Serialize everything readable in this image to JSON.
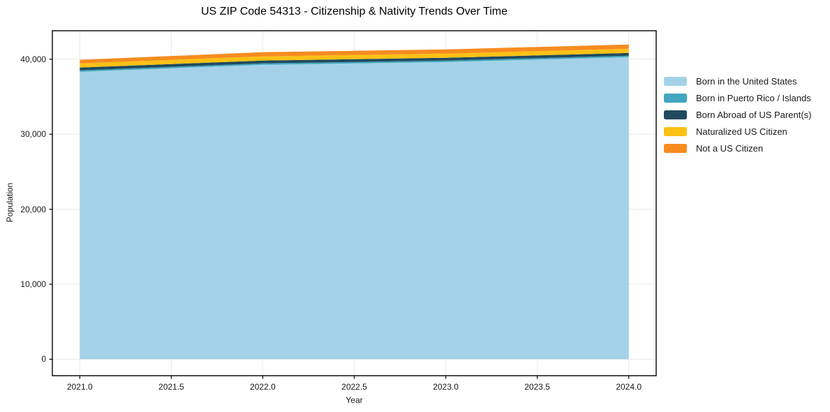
{
  "title": "US ZIP Code 54313 - Citizenship & Nativity Trends Over Time",
  "chart_data": {
    "type": "area",
    "stacked": true,
    "title": "US ZIP Code 54313 - Citizenship & Nativity Trends Over Time",
    "xlabel": "Year",
    "ylabel": "Population",
    "x": [
      2021,
      2022,
      2023,
      2024
    ],
    "series": [
      {
        "name": "Born in the United States",
        "color": "#a3d2e8",
        "values": [
          38330,
          39260,
          39630,
          40280
        ]
      },
      {
        "name": "Born in Puerto Rico / Islands",
        "color": "#41a6c0",
        "values": [
          190,
          190,
          190,
          190
        ]
      },
      {
        "name": "Born Abroad of US Parent(s)",
        "color": "#204a5d",
        "values": [
          370,
          370,
          370,
          370
        ]
      },
      {
        "name": "Naturalized US Citizen",
        "color": "#fcc115",
        "values": [
          560,
          560,
          560,
          560
        ]
      },
      {
        "name": "Not a US Citizen",
        "color": "#f68c1f",
        "values": [
          470,
          560,
          560,
          560
        ]
      }
    ],
    "xlim": [
      2020.85,
      2024.15
    ],
    "ylim": [
      -2200,
      43800
    ],
    "xticks": [
      2021.0,
      2021.5,
      2022.0,
      2022.5,
      2023.0,
      2023.5,
      2024.0
    ],
    "xtick_labels": [
      "2021.0",
      "2021.5",
      "2022.0",
      "2022.5",
      "2023.0",
      "2023.5",
      "2024.0"
    ],
    "yticks": [
      0,
      10000,
      20000,
      30000,
      40000
    ],
    "ytick_labels": [
      "0",
      "10,000",
      "20,000",
      "30,000",
      "40,000"
    ],
    "grid": true,
    "legend_position": "right-outside"
  },
  "colors": {
    "background": "#ffffff",
    "grid": "#e8e8e8",
    "spine": "#000000",
    "tick": "#000000",
    "text": "#1a1a1a"
  }
}
